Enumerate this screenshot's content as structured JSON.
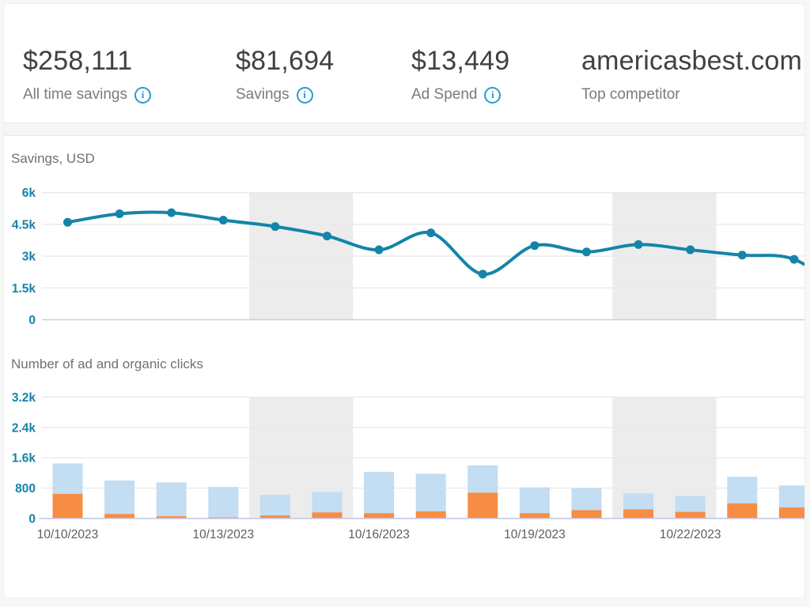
{
  "stats": [
    {
      "value": "$258,111",
      "label": "All time savings",
      "has_info": true
    },
    {
      "value": "$81,694",
      "label": "Savings",
      "has_info": true
    },
    {
      "value": "$13,449",
      "label": "Ad Spend",
      "has_info": true
    },
    {
      "value": "americasbest.com",
      "label": "Top competitor",
      "has_info": false
    }
  ],
  "colors": {
    "accent_teal": "#1484a8",
    "tick_label": "#1583a8",
    "info_blue": "#209bd8",
    "bar_organic_blue": "#c3ddf2",
    "bar_ad_orange": "#f78c44",
    "gridline": "#e9e9eb",
    "zero_line": "#c9cce9",
    "weekend_band": "#ececec",
    "date_label": "#5a5e62"
  },
  "chart_data": [
    {
      "type": "line",
      "title": "Savings, USD",
      "x": [
        "10/10/2023",
        "10/11/2023",
        "10/12/2023",
        "10/13/2023",
        "10/14/2023",
        "10/15/2023",
        "10/16/2023",
        "10/17/2023",
        "10/18/2023",
        "10/19/2023",
        "10/20/2023",
        "10/21/2023",
        "10/22/2023",
        "10/23/2023",
        "10/24/2023"
      ],
      "series": [
        {
          "name": "Savings, USD",
          "values": [
            4600,
            5000,
            5050,
            4700,
            4400,
            3950,
            3300,
            4100,
            2150,
            3500,
            3200,
            3550,
            3300,
            3050,
            2850
          ]
        }
      ],
      "edge_continuation_value": 1200,
      "ylim": [
        0,
        6000
      ],
      "yticks": [
        0,
        1500,
        3000,
        4500,
        6000
      ],
      "ytick_labels": [
        "0",
        "1.5k",
        "3k",
        "4.5k",
        "6k"
      ],
      "xtick_labels": [],
      "weekend_band_indices": [
        [
          4,
          5
        ],
        [
          11,
          12
        ]
      ],
      "grid": true,
      "legend": "none"
    },
    {
      "type": "bar",
      "stacked": true,
      "title": "Number of ad and organic clicks",
      "x": [
        "10/10/2023",
        "10/11/2023",
        "10/12/2023",
        "10/13/2023",
        "10/14/2023",
        "10/15/2023",
        "10/16/2023",
        "10/17/2023",
        "10/18/2023",
        "10/19/2023",
        "10/20/2023",
        "10/21/2023",
        "10/22/2023",
        "10/23/2023",
        "10/24/2023"
      ],
      "series": [
        {
          "name": "ad clicks",
          "color": "#f78c44",
          "values": [
            650,
            120,
            60,
            30,
            80,
            160,
            140,
            190,
            680,
            140,
            220,
            240,
            175,
            400,
            290
          ]
        },
        {
          "name": "organic clicks",
          "color": "#c3ddf2",
          "values": [
            800,
            880,
            890,
            800,
            540,
            540,
            1090,
            990,
            720,
            680,
            580,
            420,
            415,
            700,
            580
          ]
        }
      ],
      "ylim": [
        0,
        3200
      ],
      "yticks": [
        0,
        800,
        1600,
        2400,
        3200
      ],
      "ytick_labels": [
        "0",
        "800",
        "1.6k",
        "2.4k",
        "3.2k"
      ],
      "xtick_every": 3,
      "xtick_labels_shown": [
        "10/10/2023",
        "10/13/2023",
        "10/16/2023",
        "10/19/2023",
        "10/22/2023"
      ],
      "weekend_band_indices": [
        [
          4,
          5
        ],
        [
          11,
          12
        ]
      ],
      "grid": true,
      "legend": "none"
    }
  ]
}
